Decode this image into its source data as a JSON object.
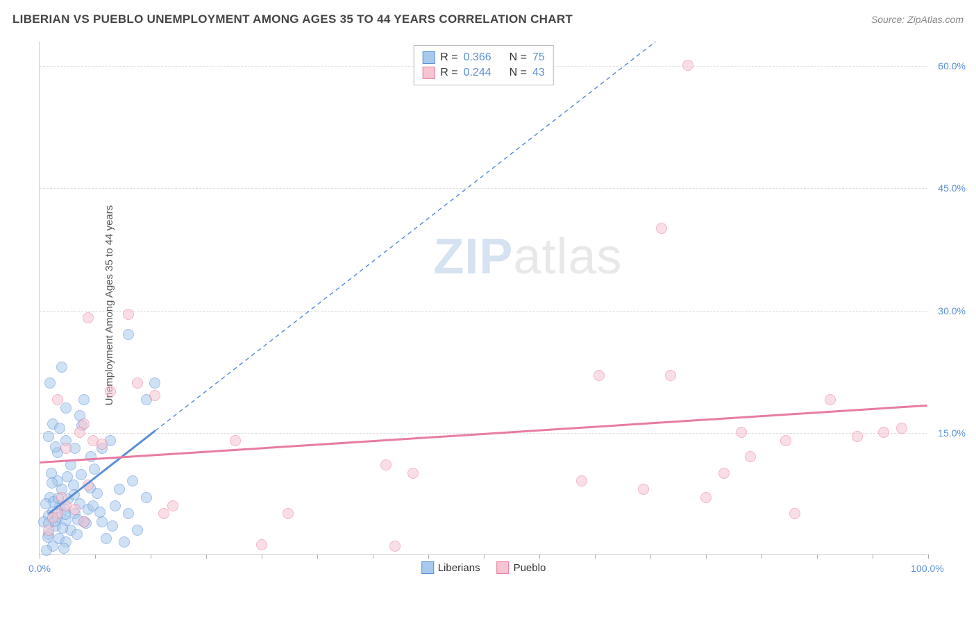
{
  "header": {
    "title": "LIBERIAN VS PUEBLO UNEMPLOYMENT AMONG AGES 35 TO 44 YEARS CORRELATION CHART",
    "source_prefix": "Source: ",
    "source_name": "ZipAtlas.com"
  },
  "axes": {
    "y_label": "Unemployment Among Ages 35 to 44 years",
    "x_min_label": "0.0%",
    "x_max_label": "100.0%"
  },
  "watermark": {
    "zip": "ZIP",
    "atlas": "atlas"
  },
  "chart": {
    "type": "scatter",
    "xlim": [
      0,
      100
    ],
    "ylim": [
      0,
      63
    ],
    "y_ticks": [
      15.0,
      30.0,
      45.0,
      60.0
    ],
    "y_tick_labels": [
      "15.0%",
      "30.0%",
      "45.0%",
      "60.0%"
    ],
    "x_ticks": [
      0,
      6.25,
      12.5,
      18.75,
      25,
      31.25,
      37.5,
      43.75,
      50,
      56.25,
      62.5,
      68.75,
      75,
      81.25,
      87.5,
      93.75,
      100
    ],
    "background_color": "#ffffff",
    "grid_color": "#dddddd",
    "marker_radius": 8,
    "marker_opacity": 0.55,
    "series": [
      {
        "name": "Liberians",
        "color_fill": "#a8c9ec",
        "color_stroke": "#5a8fd6",
        "r_value": "0.366",
        "n_value": "75",
        "trend": {
          "x1": 1,
          "y1": 5,
          "x2": 13,
          "y2": 15.2,
          "solid": true,
          "dash_to_x": 80,
          "dash_to_y": 72
        },
        "points": [
          [
            1,
            4.8
          ],
          [
            1.5,
            5.2
          ],
          [
            2,
            4.5
          ],
          [
            2.3,
            6
          ],
          [
            2.8,
            5.5
          ],
          [
            1.2,
            7
          ],
          [
            3,
            4.2
          ],
          [
            3.2,
            6.8
          ],
          [
            1.8,
            3.5
          ],
          [
            2.5,
            8
          ],
          [
            4,
            5
          ],
          [
            3.5,
            3
          ],
          [
            4.5,
            6.2
          ],
          [
            1,
            2.5
          ],
          [
            2.2,
            2
          ],
          [
            5,
            4
          ],
          [
            3,
            1.5
          ],
          [
            1.5,
            1
          ],
          [
            5.5,
            5.5
          ],
          [
            2,
            9
          ],
          [
            1.3,
            10
          ],
          [
            4.2,
            2.5
          ],
          [
            6,
            6
          ],
          [
            0.8,
            0.5
          ],
          [
            2.7,
            0.8
          ],
          [
            3.8,
            8.5
          ],
          [
            1.6,
            6.5
          ],
          [
            5.2,
            3.8
          ],
          [
            0.5,
            4
          ],
          [
            6.5,
            7.5
          ],
          [
            2,
            12.5
          ],
          [
            3,
            14
          ],
          [
            1,
            14.5
          ],
          [
            4,
            13
          ],
          [
            1.5,
            16
          ],
          [
            4.5,
            17
          ],
          [
            5,
            19
          ],
          [
            1.2,
            21
          ],
          [
            2.5,
            23
          ],
          [
            8,
            14
          ],
          [
            7,
            4
          ],
          [
            8.5,
            6
          ],
          [
            9,
            8
          ],
          [
            10,
            5
          ],
          [
            10.5,
            9
          ],
          [
            12,
            7
          ],
          [
            7.5,
            2
          ],
          [
            8.2,
            3.5
          ],
          [
            11,
            3
          ],
          [
            9.5,
            1.5
          ],
          [
            10,
            27
          ],
          [
            12,
            19
          ],
          [
            13,
            21
          ],
          [
            3,
            18
          ],
          [
            2.3,
            15.5
          ],
          [
            5.8,
            12
          ],
          [
            6.2,
            10.5
          ],
          [
            1.8,
            13.2
          ],
          [
            4.8,
            15.8
          ],
          [
            3.5,
            11
          ],
          [
            7,
            13
          ],
          [
            1,
            3.8
          ],
          [
            0.7,
            6.2
          ],
          [
            2.9,
            4.9
          ],
          [
            1.4,
            8.8
          ],
          [
            4.3,
            4.3
          ],
          [
            3.1,
            9.5
          ],
          [
            5.7,
            8.2
          ],
          [
            0.9,
            2.1
          ],
          [
            2.1,
            6.9
          ],
          [
            6.8,
            5.2
          ],
          [
            1.7,
            4.1
          ],
          [
            3.9,
            7.3
          ],
          [
            2.6,
            3.2
          ],
          [
            4.7,
            9.8
          ]
        ]
      },
      {
        "name": "Pueblo",
        "color_fill": "#f7c4d1",
        "color_stroke": "#e87ca0",
        "r_value": "0.244",
        "n_value": "43",
        "trend": {
          "x1": 0,
          "y1": 11.3,
          "x2": 100,
          "y2": 18.3,
          "solid": true
        },
        "points": [
          [
            2,
            5
          ],
          [
            3,
            6
          ],
          [
            1.5,
            4.5
          ],
          [
            4,
            5.5
          ],
          [
            2.5,
            7
          ],
          [
            5,
            4
          ],
          [
            1,
            3
          ],
          [
            5.5,
            8.5
          ],
          [
            14,
            5
          ],
          [
            15,
            6
          ],
          [
            6,
            14
          ],
          [
            7,
            13.5
          ],
          [
            8,
            20
          ],
          [
            5,
            16
          ],
          [
            2,
            19
          ],
          [
            4.5,
            15
          ],
          [
            3,
            13
          ],
          [
            11,
            21
          ],
          [
            13,
            19.5
          ],
          [
            5.5,
            29
          ],
          [
            10,
            29.5
          ],
          [
            22,
            14
          ],
          [
            25,
            1.2
          ],
          [
            28,
            5
          ],
          [
            39,
            11
          ],
          [
            40,
            1
          ],
          [
            42,
            10
          ],
          [
            61,
            9
          ],
          [
            63,
            22
          ],
          [
            68,
            8
          ],
          [
            70,
            40
          ],
          [
            71,
            22
          ],
          [
            73,
            60
          ],
          [
            75,
            7
          ],
          [
            77,
            10
          ],
          [
            79,
            15
          ],
          [
            80,
            12
          ],
          [
            84,
            14
          ],
          [
            85,
            5
          ],
          [
            89,
            19
          ],
          [
            92,
            14.5
          ],
          [
            95,
            15
          ],
          [
            97,
            15.5
          ]
        ]
      }
    ]
  },
  "legend_top": {
    "r_label": "R =",
    "n_label": "N ="
  },
  "legend_bottom": {
    "series1": "Liberians",
    "series2": "Pueblo"
  }
}
